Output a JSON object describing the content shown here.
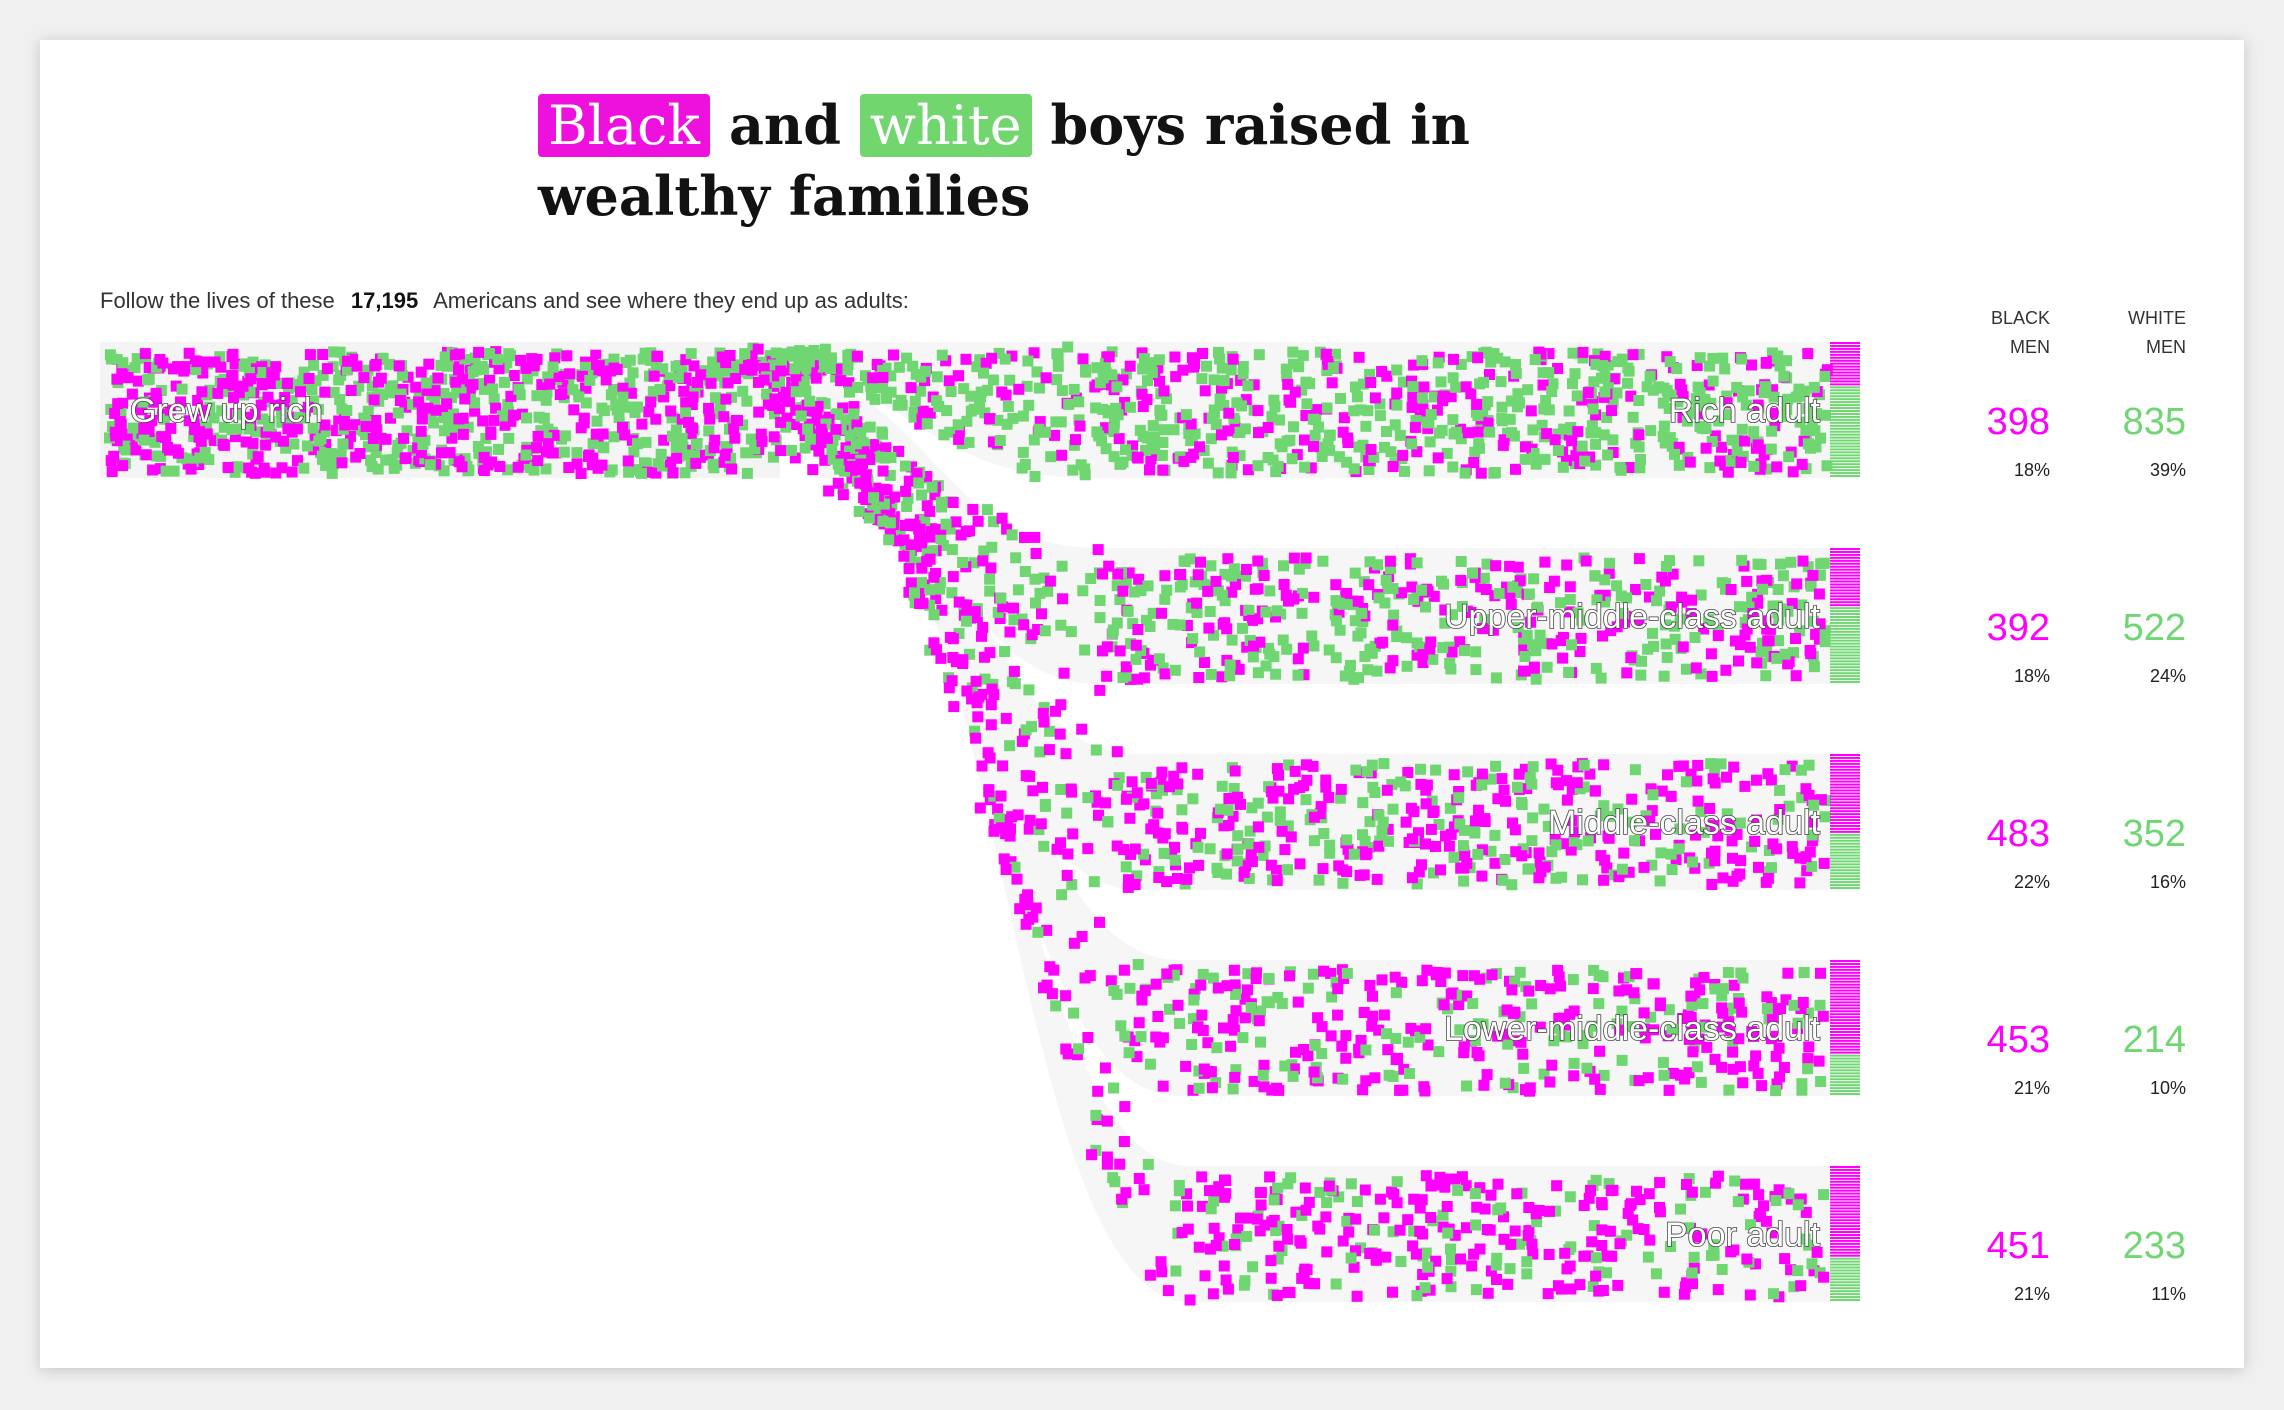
{
  "title": {
    "black_word": "Black",
    "and_word": "and",
    "white_word": "white",
    "rest": "boys raised in wealthy families"
  },
  "subtitle": {
    "before": "Follow the lives of these",
    "count": "17,195",
    "after": "Americans and see where they end up as adults:"
  },
  "colors": {
    "black_men": "#ff00ff",
    "white_men": "#6fd672",
    "highlight_black": "#ee11dd",
    "highlight_white": "#72d66f"
  },
  "chart_data": {
    "type": "sankey",
    "source": "Grew up rich",
    "columns": {
      "black": [
        "Black",
        "men"
      ],
      "white": [
        "White",
        "men"
      ]
    },
    "outcomes": [
      {
        "label": "Rich adult",
        "black": 398,
        "black_pct": "18%",
        "white": 835,
        "white_pct": "39%"
      },
      {
        "label": "Upper-middle-class adult",
        "black": 392,
        "black_pct": "18%",
        "white": 522,
        "white_pct": "24%"
      },
      {
        "label": "Middle-class adult",
        "black": 483,
        "black_pct": "22%",
        "white": 352,
        "white_pct": "16%"
      },
      {
        "label": "Lower-middle-class adult",
        "black": 453,
        "black_pct": "21%",
        "white": 214,
        "white_pct": "10%"
      },
      {
        "label": "Poor adult",
        "black": 451,
        "black_pct": "21%",
        "white": 233,
        "white_pct": "11%"
      }
    ]
  }
}
